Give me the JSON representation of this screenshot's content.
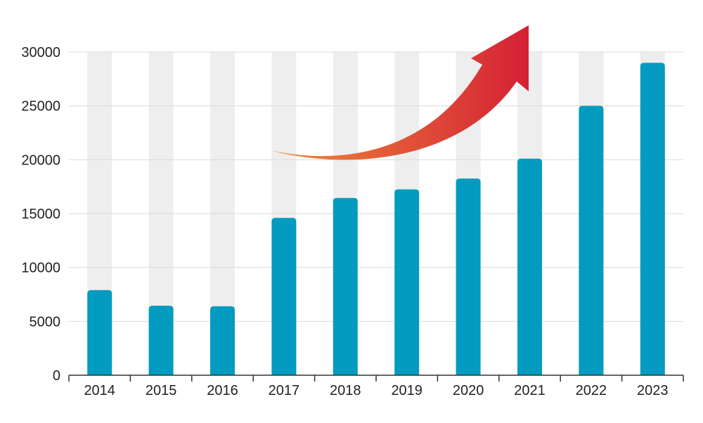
{
  "chart_data": {
    "type": "bar",
    "title": "",
    "xlabel": "",
    "ylabel": "",
    "categories": [
      "2014",
      "2015",
      "2016",
      "2017",
      "2018",
      "2019",
      "2020",
      "2021",
      "2022",
      "2023"
    ],
    "values": [
      7900,
      6450,
      6400,
      14600,
      16450,
      17250,
      18250,
      20100,
      25000,
      29000
    ],
    "ylim": [
      0,
      30000
    ],
    "yticks": [
      0,
      5000,
      10000,
      15000,
      20000,
      25000,
      30000
    ],
    "grid": true,
    "legend": "none",
    "colors": {
      "bar": "#039bbf",
      "bar_background": "#eeeeee",
      "gridline": "#d9d9d9",
      "axis": "#333333",
      "arrow_start": "#f08a3a",
      "arrow_end": "#d42035"
    },
    "annotations": [
      {
        "kind": "trend-arrow",
        "icon": "curved-up-arrow-icon"
      }
    ]
  }
}
